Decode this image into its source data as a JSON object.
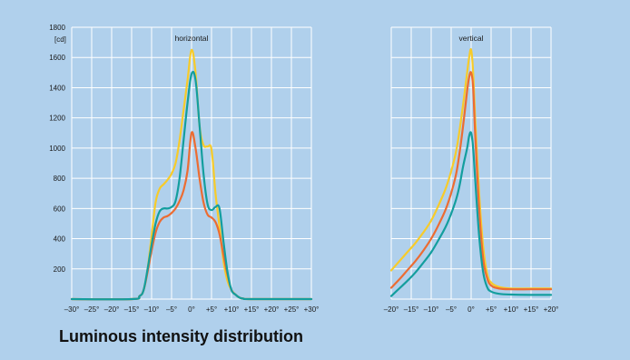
{
  "caption": "Luminous intensity distribution",
  "colors": {
    "background": "#b0d0ec",
    "grid": "#ffffff",
    "yellow": "#f7cb2a",
    "orange": "#ec6c32",
    "teal": "#139e9e"
  },
  "chart_data": [
    {
      "type": "line",
      "title": "horizontal",
      "ylabel": "[cd]",
      "grid": true,
      "xlim": [
        -30,
        30
      ],
      "ylim": [
        0,
        1800
      ],
      "x_ticks": [
        -30,
        -25,
        -20,
        -15,
        -10,
        -5,
        0,
        5,
        10,
        15,
        20,
        25,
        30
      ],
      "x_tick_labels": [
        "–30°",
        "–25°",
        "–20°",
        "–15°",
        "–10°",
        "–5°",
        "0°",
        "+5°",
        "+10°",
        "+15°",
        "+20°",
        "+25°",
        "+30°"
      ],
      "y_ticks": [
        200,
        400,
        600,
        800,
        1000,
        1200,
        1400,
        1600,
        1800
      ],
      "y_tick_labels": [
        "200",
        "400",
        "600",
        "800",
        "1000",
        "1200",
        "1400",
        "1600",
        "1800"
      ],
      "series": [
        {
          "color": "#f7cb2a",
          "x": [
            -30,
            -15,
            -13,
            -12,
            -11,
            -10,
            -9,
            -8,
            -7,
            -6,
            -5,
            -4,
            -3,
            -2,
            -1,
            0,
            1,
            2,
            3,
            4,
            5,
            6,
            7,
            8,
            9,
            10,
            11,
            12,
            13,
            15,
            30
          ],
          "y": [
            0,
            0,
            20,
            60,
            200,
            420,
            640,
            730,
            760,
            790,
            830,
            900,
            1050,
            1250,
            1450,
            1650,
            1500,
            1150,
            1020,
            1010,
            990,
            700,
            480,
            250,
            120,
            60,
            30,
            10,
            3,
            0,
            0
          ]
        },
        {
          "color": "#ec6c32",
          "x": [
            -30,
            -15,
            -13,
            -12,
            -11,
            -10,
            -9,
            -8,
            -7,
            -6,
            -5,
            -4,
            -3,
            -2,
            -1,
            0,
            1,
            2,
            3,
            4,
            5,
            6,
            7,
            8,
            9,
            10,
            11,
            12,
            13,
            15,
            30
          ],
          "y": [
            0,
            0,
            20,
            60,
            180,
            320,
            440,
            510,
            540,
            550,
            570,
            600,
            650,
            720,
            850,
            1100,
            1000,
            800,
            640,
            560,
            540,
            510,
            430,
            290,
            160,
            60,
            30,
            10,
            3,
            0,
            0
          ]
        },
        {
          "color": "#139e9e",
          "x": [
            -30,
            -15,
            -13,
            -12,
            -11,
            -10,
            -9,
            -8,
            -7,
            -6,
            -5,
            -4,
            -3,
            -2,
            -1,
            0,
            1,
            2,
            3,
            4,
            5,
            6,
            7,
            8,
            9,
            10,
            11,
            12,
            13,
            15,
            30
          ],
          "y": [
            0,
            0,
            20,
            60,
            200,
            360,
            500,
            580,
            600,
            600,
            610,
            650,
            800,
            1050,
            1300,
            1490,
            1450,
            1150,
            830,
            630,
            590,
            610,
            600,
            380,
            180,
            60,
            30,
            10,
            3,
            0,
            0
          ]
        }
      ]
    },
    {
      "type": "line",
      "title": "vertical",
      "ylabel": "",
      "grid": true,
      "xlim": [
        -20,
        20
      ],
      "ylim": [
        0,
        1800
      ],
      "x_ticks": [
        -20,
        -15,
        -10,
        -5,
        0,
        5,
        10,
        15,
        20
      ],
      "x_tick_labels": [
        "–20°",
        "–15°",
        "–10°",
        "–5°",
        "0°",
        "+5°",
        "+10°",
        "+15°",
        "+20°"
      ],
      "y_ticks": [
        200,
        400,
        600,
        800,
        1000,
        1200,
        1400,
        1600,
        1800
      ],
      "y_tick_labels": [],
      "series": [
        {
          "color": "#f7cb2a",
          "x": [
            -20,
            -18,
            -16,
            -14,
            -12,
            -10,
            -8,
            -6,
            -4,
            -3,
            -2,
            -1,
            -0.5,
            0,
            0.5,
            1,
            2,
            3,
            4,
            5,
            7,
            10,
            15,
            20
          ],
          "y": [
            190,
            250,
            310,
            370,
            440,
            520,
            630,
            760,
            950,
            1100,
            1290,
            1500,
            1600,
            1650,
            1500,
            1200,
            700,
            350,
            170,
            110,
            80,
            70,
            70,
            70
          ]
        },
        {
          "color": "#ec6c32",
          "x": [
            -20,
            -18,
            -16,
            -14,
            -12,
            -10,
            -8,
            -6,
            -4,
            -3,
            -2,
            -1,
            -0.5,
            0,
            0.5,
            1,
            2,
            3,
            4,
            5,
            7,
            10,
            15,
            20
          ],
          "y": [
            75,
            130,
            190,
            250,
            320,
            400,
            500,
            620,
            800,
            950,
            1150,
            1380,
            1470,
            1500,
            1400,
            1100,
            600,
            270,
            140,
            90,
            70,
            65,
            65,
            65
          ]
        },
        {
          "color": "#139e9e",
          "x": [
            -20,
            -18,
            -16,
            -14,
            -12,
            -10,
            -8,
            -6,
            -4,
            -3,
            -2,
            -1,
            -0.5,
            0,
            0.5,
            1,
            2,
            3,
            4,
            5,
            7,
            10,
            15,
            20
          ],
          "y": [
            20,
            70,
            120,
            175,
            240,
            310,
            400,
            500,
            640,
            740,
            880,
            1000,
            1080,
            1100,
            1000,
            800,
            420,
            180,
            80,
            50,
            35,
            30,
            28,
            28
          ]
        }
      ]
    }
  ]
}
